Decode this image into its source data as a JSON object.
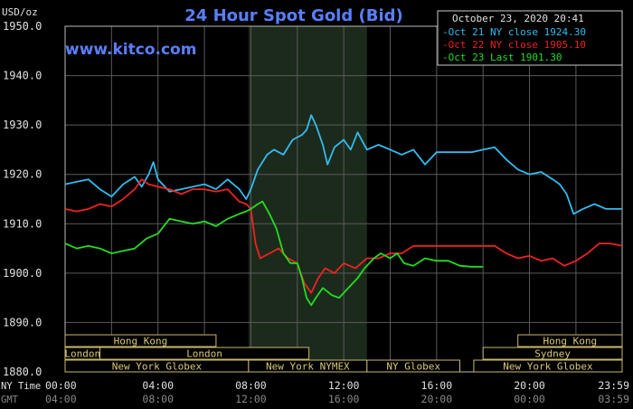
{
  "header": {
    "y_unit": "USD/oz",
    "title": "24 Hour Spot Gold (Bid)",
    "timestamp": "October 23, 2020 20:41",
    "website": "www.kitco.com"
  },
  "legend": [
    {
      "label": "Oct 21 NY close 1924.30",
      "color": "#33bbee"
    },
    {
      "label": "Oct 22 NY close 1905.10",
      "color": "#ee2222"
    },
    {
      "label": "Oct 23 Last 1901.30",
      "color": "#22dd22"
    }
  ],
  "axis_labels": {
    "ny_time": "NY Time",
    "gmt": "GMT",
    "ny_ticks": [
      "00:00",
      "04:00",
      "08:00",
      "12:00",
      "16:00",
      "20:00",
      "23:59"
    ],
    "gmt_ticks": [
      "04:00",
      "08:00",
      "12:00",
      "16:00",
      "20:00",
      "00:00",
      "03:59"
    ]
  },
  "sessions": [
    {
      "label": "Hong Kong",
      "start": 0.0,
      "end": 6.5,
      "row": 0
    },
    {
      "label": "Hong Kong",
      "start": 19.5,
      "end": 23.99,
      "row": 0
    },
    {
      "label": "London",
      "start": 1.5,
      "end": 10.5,
      "row": 1
    },
    {
      "label": "London",
      "start": 0.0,
      "end": 1.5,
      "row": 1
    },
    {
      "label": "Sydney",
      "start": 18.0,
      "end": 23.99,
      "row": 1
    },
    {
      "label": "New York Globex",
      "start": 0.0,
      "end": 7.9,
      "row": 2
    },
    {
      "label": "New York NYMEX",
      "start": 7.9,
      "end": 13.0,
      "row": 2
    },
    {
      "label": "NY Globex",
      "start": 13.0,
      "end": 17.0,
      "row": 2
    },
    {
      "label": "New York Globex",
      "start": 17.6,
      "end": 23.99,
      "row": 2
    }
  ],
  "shaded_region": {
    "start": 7.9,
    "end": 13.0
  },
  "chart_data": {
    "type": "line",
    "x_unit": "hours (NY Time)",
    "xlim": [
      0,
      23.99
    ],
    "ylim": [
      1880,
      1950
    ],
    "y_ticks": [
      "1950.0",
      "1940.0",
      "1930.0",
      "1920.0",
      "1910.0",
      "1900.0",
      "1890.0",
      "1880.0"
    ],
    "series": [
      {
        "name": "Oct 21 NY close 1924.30",
        "color": "#33bbee",
        "points": [
          [
            0,
            1918
          ],
          [
            0.5,
            1918.5
          ],
          [
            1,
            1919
          ],
          [
            1.5,
            1917
          ],
          [
            2,
            1915.5
          ],
          [
            2.5,
            1918
          ],
          [
            3,
            1919.5
          ],
          [
            3.3,
            1917.5
          ],
          [
            3.6,
            1920
          ],
          [
            3.8,
            1922.5
          ],
          [
            4,
            1919
          ],
          [
            4.5,
            1916.5
          ],
          [
            5,
            1917
          ],
          [
            5.5,
            1917.5
          ],
          [
            6,
            1918
          ],
          [
            6.5,
            1917
          ],
          [
            7,
            1919
          ],
          [
            7.5,
            1917
          ],
          [
            7.8,
            1915
          ],
          [
            8,
            1917
          ],
          [
            8.3,
            1921
          ],
          [
            8.7,
            1924
          ],
          [
            9,
            1925
          ],
          [
            9.4,
            1924
          ],
          [
            9.8,
            1927
          ],
          [
            10.2,
            1928
          ],
          [
            10.4,
            1929
          ],
          [
            10.6,
            1932
          ],
          [
            10.8,
            1930
          ],
          [
            11.1,
            1926
          ],
          [
            11.3,
            1922
          ],
          [
            11.6,
            1925.5
          ],
          [
            12,
            1927
          ],
          [
            12.3,
            1925
          ],
          [
            12.6,
            1928.5
          ],
          [
            13,
            1925
          ],
          [
            13.5,
            1926
          ],
          [
            14,
            1925
          ],
          [
            14.5,
            1924
          ],
          [
            15,
            1925
          ],
          [
            15.5,
            1922
          ],
          [
            16,
            1924.5
          ],
          [
            16.5,
            1924.5
          ],
          [
            17,
            1924.5
          ],
          [
            17.5,
            1924.5
          ],
          [
            18,
            1925
          ],
          [
            18.5,
            1925.5
          ],
          [
            19,
            1923
          ],
          [
            19.5,
            1921
          ],
          [
            20,
            1920
          ],
          [
            20.5,
            1920.5
          ],
          [
            21,
            1919
          ],
          [
            21.3,
            1918
          ],
          [
            21.6,
            1916
          ],
          [
            21.9,
            1912
          ],
          [
            22.3,
            1913
          ],
          [
            22.8,
            1914
          ],
          [
            23.3,
            1913
          ],
          [
            23.99,
            1913
          ]
        ]
      },
      {
        "name": "Oct 22 NY close 1905.10",
        "color": "#ee2222",
        "points": [
          [
            0,
            1913
          ],
          [
            0.5,
            1912.5
          ],
          [
            1,
            1913
          ],
          [
            1.5,
            1914
          ],
          [
            2,
            1913.5
          ],
          [
            2.5,
            1915
          ],
          [
            3,
            1917
          ],
          [
            3.3,
            1919
          ],
          [
            3.6,
            1918
          ],
          [
            4,
            1917.5
          ],
          [
            4.5,
            1917
          ],
          [
            5,
            1916
          ],
          [
            5.5,
            1917
          ],
          [
            6,
            1917
          ],
          [
            6.5,
            1916.5
          ],
          [
            7,
            1917
          ],
          [
            7.5,
            1914.5
          ],
          [
            7.8,
            1914
          ],
          [
            8,
            1913
          ],
          [
            8.2,
            1906
          ],
          [
            8.4,
            1903
          ],
          [
            8.8,
            1904
          ],
          [
            9.2,
            1905
          ],
          [
            9.6,
            1903
          ],
          [
            10,
            1902
          ],
          [
            10.3,
            1898
          ],
          [
            10.6,
            1896
          ],
          [
            10.9,
            1899
          ],
          [
            11.2,
            1901
          ],
          [
            11.6,
            1900
          ],
          [
            12,
            1902
          ],
          [
            12.5,
            1901
          ],
          [
            13,
            1903
          ],
          [
            13.5,
            1903
          ],
          [
            14,
            1904
          ],
          [
            14.5,
            1904
          ],
          [
            15,
            1905.5
          ],
          [
            16,
            1905.5
          ],
          [
            17,
            1905.5
          ],
          [
            18,
            1905.5
          ],
          [
            18.5,
            1905.5
          ],
          [
            19,
            1904
          ],
          [
            19.5,
            1903
          ],
          [
            20,
            1903.5
          ],
          [
            20.5,
            1902.5
          ],
          [
            21,
            1903
          ],
          [
            21.5,
            1901.5
          ],
          [
            22,
            1902.5
          ],
          [
            22.5,
            1904
          ],
          [
            23,
            1906
          ],
          [
            23.5,
            1906
          ],
          [
            23.99,
            1905.5
          ]
        ]
      },
      {
        "name": "Oct 23 Last 1901.30",
        "color": "#22dd22",
        "points": [
          [
            0,
            1906
          ],
          [
            0.5,
            1905
          ],
          [
            1,
            1905.5
          ],
          [
            1.5,
            1905
          ],
          [
            2,
            1904
          ],
          [
            2.5,
            1904.5
          ],
          [
            3,
            1905
          ],
          [
            3.5,
            1907
          ],
          [
            4,
            1908
          ],
          [
            4.5,
            1911
          ],
          [
            5,
            1910.5
          ],
          [
            5.5,
            1910
          ],
          [
            6,
            1910.5
          ],
          [
            6.5,
            1909.5
          ],
          [
            7,
            1911
          ],
          [
            7.5,
            1912
          ],
          [
            7.8,
            1912.5
          ],
          [
            8,
            1913
          ],
          [
            8.3,
            1914
          ],
          [
            8.5,
            1914.5
          ],
          [
            8.8,
            1912
          ],
          [
            9.1,
            1909
          ],
          [
            9.4,
            1904
          ],
          [
            9.7,
            1902
          ],
          [
            10,
            1902
          ],
          [
            10.2,
            1899
          ],
          [
            10.4,
            1895
          ],
          [
            10.6,
            1893.5
          ],
          [
            10.8,
            1895
          ],
          [
            11.1,
            1897
          ],
          [
            11.5,
            1895.5
          ],
          [
            11.8,
            1895
          ],
          [
            12,
            1896
          ],
          [
            12.3,
            1897.5
          ],
          [
            12.6,
            1899
          ],
          [
            12.9,
            1901
          ],
          [
            13.3,
            1903
          ],
          [
            13.6,
            1904
          ],
          [
            14,
            1903
          ],
          [
            14.3,
            1904
          ],
          [
            14.6,
            1902
          ],
          [
            15,
            1901.5
          ],
          [
            15.5,
            1903
          ],
          [
            16,
            1902.5
          ],
          [
            16.5,
            1902.5
          ],
          [
            17,
            1901.5
          ],
          [
            17.5,
            1901.3
          ],
          [
            18,
            1901.3
          ]
        ]
      }
    ]
  }
}
